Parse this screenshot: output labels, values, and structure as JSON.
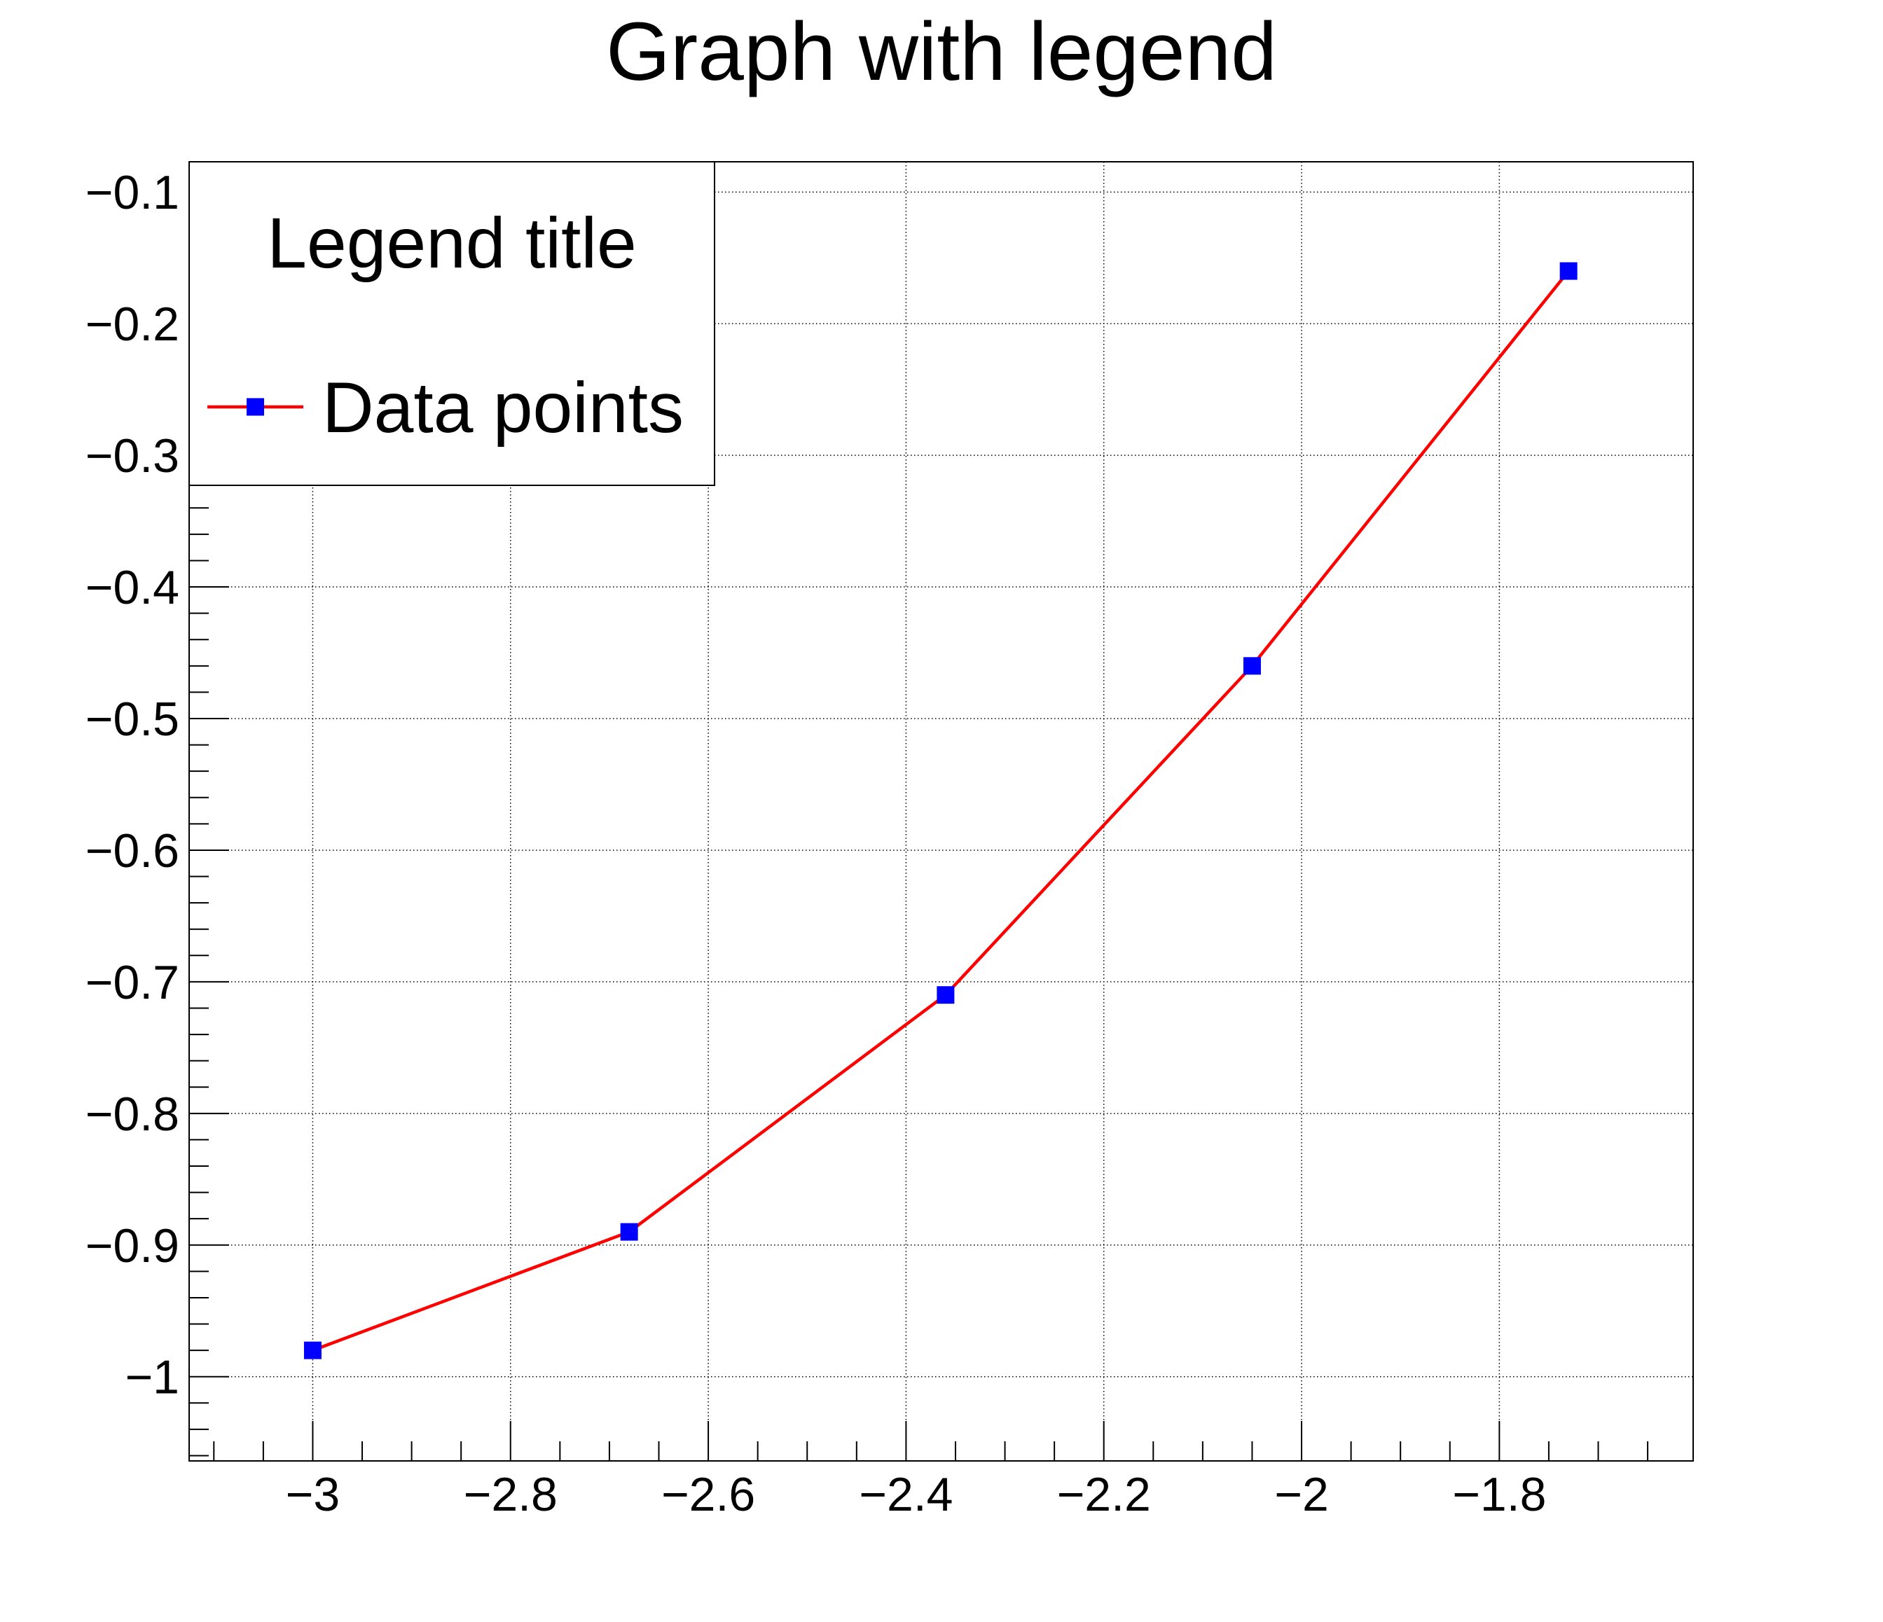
{
  "title": "Graph with legend",
  "colors": {
    "background": "#ffffff",
    "axis": "#000000",
    "grid": "#000000",
    "text": "#000000",
    "line": "#ff0000",
    "marker": "#0000ff",
    "legend_border": "#000000",
    "legend_fill": "#ffffff"
  },
  "legend": {
    "title": "Legend title",
    "entries": [
      {
        "label": "Data points",
        "line_color": "#ff0000",
        "marker": "square",
        "marker_color": "#0000ff"
      }
    ]
  },
  "chart_data": {
    "type": "line",
    "title": "Graph with legend",
    "xlabel": "",
    "ylabel": "",
    "series": [
      {
        "name": "Data points",
        "x": [
          -3.0,
          -2.68,
          -2.36,
          -2.05,
          -1.73
        ],
        "y": [
          -0.98,
          -0.89,
          -0.71,
          -0.46,
          -0.16
        ],
        "line_color": "#ff0000",
        "marker": "square",
        "marker_color": "#0000ff"
      }
    ],
    "xlim": [
      -3.125,
      -1.604
    ],
    "ylim": [
      -1.064,
      -0.077
    ],
    "x_ticks": [
      -3,
      -2.8,
      -2.6,
      -2.4,
      -2.2,
      -2,
      -1.8
    ],
    "x_tick_labels": [
      "−3",
      "−2.8",
      "−2.6",
      "−2.4",
      "−2.2",
      "−2",
      "−1.8"
    ],
    "y_ticks": [
      -0.1,
      -0.2,
      -0.3,
      -0.4,
      -0.5,
      -0.6,
      -0.7,
      -0.8,
      -0.9,
      -1.0
    ],
    "y_tick_labels": [
      "−0.1",
      "−0.2",
      "−0.3",
      "−0.4",
      "−0.5",
      "−0.6",
      "−0.7",
      "−0.8",
      "−0.9",
      "−1"
    ],
    "x_minor_step": 0.05,
    "y_minor_step": 0.02,
    "grid": true,
    "grid_style": "dotted",
    "legend_position": "top-left"
  }
}
